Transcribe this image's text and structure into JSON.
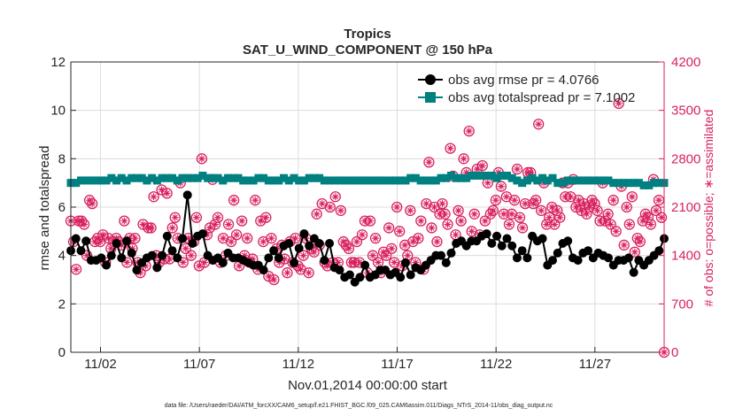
{
  "chart_data": {
    "type": "line",
    "title": "Tropics",
    "subtitle": "SAT_U_WIND_COMPONENT @ 150 hPa",
    "xlabel": "Nov.01,2014 00:00:00 start",
    "ylabel": "rmse and totalspread",
    "y2label": "# of obs: o=possible; ∗=assimilated",
    "footnote": "data file: /Users/raeder/DAI/ATM_forcXX/CAM6_setup/f.e21.FHIST_BGC.f09_025.CAM6assim.011/Diags_NTrS_2014-11/obs_diag_output.nc",
    "xlim": [
      0.5,
      30.5
    ],
    "ylim": [
      0,
      12
    ],
    "y2lim": [
      0,
      4200
    ],
    "x_ticks": [
      {
        "x": 2,
        "label": "11/02"
      },
      {
        "x": 7,
        "label": "11/07"
      },
      {
        "x": 12,
        "label": "11/12"
      },
      {
        "x": 17,
        "label": "11/17"
      },
      {
        "x": 22,
        "label": "11/22"
      },
      {
        "x": 27,
        "label": "11/27"
      }
    ],
    "y_ticks": [
      "0",
      "2",
      "4",
      "6",
      "8",
      "10",
      "12"
    ],
    "y2_ticks": [
      "0",
      "700",
      "1400",
      "2100",
      "2800",
      "3500",
      "4200"
    ],
    "legend": [
      "obs avg rmse pr = 4.0766",
      "obs avg totalspread pr = 7.1002"
    ],
    "legend_position": "top-right",
    "colors": {
      "rmse": "#000000",
      "spread": "#008080",
      "obs": "#d9215f",
      "axes": "#262626"
    },
    "rmse": [
      4.2,
      4.7,
      4.2,
      4.6,
      3.8,
      3.8,
      3.9,
      3.6,
      4.0,
      4.5,
      3.9,
      4.6,
      4.1,
      3.4,
      3.7,
      3.9,
      4.0,
      3.5,
      4.0,
      4.8,
      4.2,
      3.9,
      4.7,
      6.5,
      4.5,
      4.8,
      4.9,
      4.0,
      3.8,
      3.9,
      3.7,
      4.1,
      3.9,
      3.9,
      3.8,
      3.7,
      3.6,
      3.6,
      3.4,
      3.9,
      4.2,
      3.9,
      4.4,
      4.5,
      3.7,
      4.3,
      4.9,
      4.4,
      4.7,
      4.5,
      3.8,
      4.5,
      3.5,
      3.4,
      3.1,
      3.2,
      2.9,
      3.1,
      3.6,
      3.1,
      3.2,
      3.4,
      3.4,
      3.2,
      3.3,
      3.1,
      3.7,
      3.2,
      3.5,
      3.4,
      3.6,
      3.8,
      4.0,
      4.0,
      3.7,
      4.1,
      4.5,
      4.6,
      4.4,
      4.6,
      4.6,
      4.8,
      4.9,
      4.5,
      4.8,
      4.4,
      4.7,
      4.4,
      3.9,
      4.2,
      3.9,
      4.8,
      4.6,
      4.7,
      3.6,
      3.8,
      4.1,
      4.5,
      4.6,
      3.9,
      3.8,
      4.1,
      4.2,
      3.9,
      4.1,
      4.0,
      3.9,
      3.6,
      3.8,
      3.8,
      3.9,
      3.3,
      3.8,
      3.6,
      3.8,
      4.0,
      4.2,
      4.7
    ],
    "spread": [
      7.0,
      7.0,
      7.1,
      7.1,
      7.1,
      7.1,
      7.1,
      7.1,
      7.2,
      7.1,
      7.2,
      7.1,
      7.2,
      7.2,
      7.2,
      7.1,
      7.2,
      7.1,
      7.2,
      7.2,
      7.2,
      7.1,
      7.2,
      7.2,
      7.2,
      7.2,
      7.3,
      7.2,
      7.2,
      7.2,
      7.1,
      7.2,
      7.2,
      7.2,
      7.1,
      7.1,
      7.1,
      7.2,
      7.2,
      7.1,
      7.1,
      7.1,
      7.2,
      7.1,
      7.2,
      7.1,
      7.1,
      7.2,
      7.2,
      7.2,
      7.1,
      7.1,
      7.1,
      7.1,
      7.1,
      7.1,
      7.1,
      7.1,
      7.1,
      7.1,
      7.1,
      7.1,
      7.1,
      7.1,
      7.1,
      7.1,
      7.1,
      7.2,
      7.2,
      7.1,
      7.1,
      7.1,
      7.1,
      7.2,
      7.2,
      7.3,
      7.2,
      7.2,
      7.2,
      7.3,
      7.3,
      7.3,
      7.3,
      7.3,
      7.2,
      7.3,
      7.3,
      7.2,
      7.1,
      7.0,
      7.1,
      7.2,
      7.1,
      7.2,
      7.1,
      7.2,
      7.0,
      7.0,
      7.1,
      7.1,
      7.1,
      7.1,
      7.1,
      7.1,
      7.1,
      7.1,
      7.1,
      7.0,
      7.0,
      7.0,
      7.0,
      7.0,
      7.0,
      6.9,
      6.9,
      7.0,
      7.0,
      7.0
    ],
    "obs_count": [
      1900,
      1600,
      1200,
      1900,
      1900,
      1850,
      1400,
      2200,
      2150,
      1600,
      1650,
      1600,
      1700,
      1300,
      1650,
      1500,
      1600,
      1650,
      1600,
      1550,
      1900,
      1300,
      1650,
      1500,
      1650,
      1300,
      1150,
      1850,
      1250,
      1800,
      1800,
      2250,
      1400,
      1300,
      2350,
      1350,
      2300,
      1350,
      1800,
      1950,
      1650,
      2450,
      1300,
      1500,
      1650,
      1400,
      1600,
      1950,
      1250,
      2800,
      1300,
      1700,
      1800,
      2500,
      1850,
      1950,
      1300,
      1650,
      1400,
      1850,
      1600,
      2200,
      1700,
      1250,
      1900,
      1400,
      1650,
      1300,
      1350,
      2200,
      1200,
      1900,
      1600,
      1950,
      1100,
      1650,
      1050,
      1500,
      1300,
      1550,
      1350,
      1150,
      1600,
      1300,
      1650,
      1250,
      1200,
      1400,
      1650,
      1150,
      1500,
      1450,
      2000,
      1550,
      2150,
      1300,
      1250,
      2100,
      1300,
      2250,
      1300,
      2050,
      1600,
      1550,
      1500,
      1300,
      1300,
      1600,
      1300,
      1700,
      1900,
      1150,
      1900,
      1400,
      1650,
      1300,
      1150,
      1450,
      1400,
      1800,
      1500,
      1300,
      2100,
      1750,
      1250,
      1550,
      1400,
      2050,
      1600,
      1300,
      1650,
      1900,
      1200,
      2150,
      2750,
      1800,
      2100,
      1600,
      2000,
      2150,
      2000,
      1850,
      2950,
      2550,
      1700,
      2050,
      1900,
      2800,
      2600,
      3200,
      1750,
      2000,
      2650,
      1700,
      2700,
      1900,
      2450,
      2000,
      2050,
      2200,
      2600,
      2400,
      2000,
      2250,
      1850,
      2000,
      2200,
      2650,
      1950,
      1800,
      2150,
      2600,
      2600,
      2150,
      2200,
      3300,
      2050,
      2450,
      1850,
      1950,
      2100,
      1850,
      2050,
      1950,
      2450,
      2250,
      2450,
      2250,
      2500,
      2100,
      2200,
      2050,
      2150,
      2000,
      2100,
      2200,
      2150,
      2050,
      1900,
      2450,
      1900,
      2000,
      1850,
      2200,
      1750,
      3600,
      2400,
      1550,
      2100,
      1850,
      2250,
      1450,
      1650,
      1600,
      1900,
      2000,
      1950,
      1850,
      2500,
      2050,
      2200,
      1950,
      0
    ],
    "obs_count_x": []
  }
}
